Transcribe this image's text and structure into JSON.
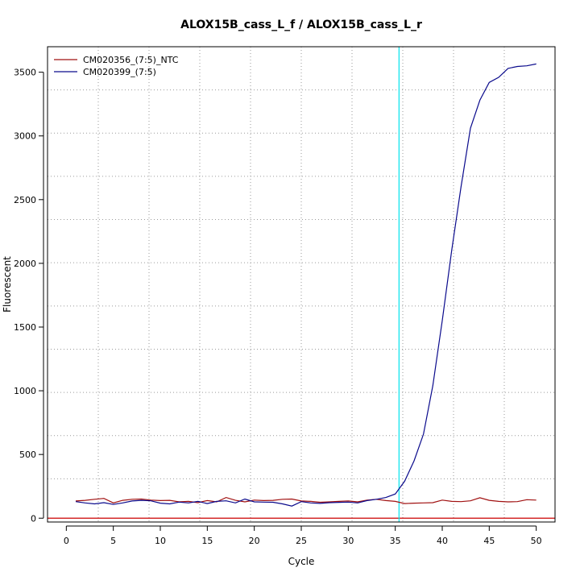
{
  "chart_data": {
    "type": "line",
    "title": "ALOX15B_cass_L_f / ALOX15B_cass_L_r",
    "xlabel": "Cycle",
    "ylabel": "Fluorescent",
    "xlim": [
      -2,
      52
    ],
    "ylim": [
      -30,
      3700
    ],
    "x_ticks": [
      0,
      5,
      10,
      15,
      20,
      25,
      30,
      35,
      40,
      45,
      50
    ],
    "y_ticks": [
      0,
      500,
      1000,
      1500,
      2000,
      2500,
      3000,
      3500
    ],
    "grid": true,
    "legend_position": "top-left",
    "threshold_x": 35.4,
    "baseline_y": 0,
    "colors": {
      "baseline": "#cc0000",
      "threshold": "#00e5ee",
      "grid": "#9a9a9a"
    },
    "series": [
      {
        "name": "CM020356_(7:5)_NTC",
        "color": "#a01010",
        "x": [
          1,
          2,
          3,
          4,
          5,
          6,
          7,
          8,
          9,
          10,
          11,
          12,
          13,
          14,
          15,
          16,
          17,
          18,
          19,
          20,
          21,
          22,
          23,
          24,
          25,
          26,
          27,
          28,
          29,
          30,
          31,
          32,
          33,
          34,
          35,
          36,
          37,
          38,
          39,
          40,
          41,
          42,
          43,
          44,
          45,
          46,
          47,
          48,
          49,
          50
        ],
        "values": [
          135,
          140,
          148,
          155,
          120,
          140,
          148,
          150,
          142,
          138,
          140,
          128,
          132,
          122,
          138,
          128,
          162,
          140,
          128,
          142,
          138,
          140,
          148,
          150,
          135,
          132,
          125,
          128,
          132,
          135,
          128,
          142,
          148,
          138,
          132,
          115,
          118,
          120,
          122,
          142,
          132,
          130,
          136,
          160,
          140,
          132,
          128,
          130,
          145,
          142
        ]
      },
      {
        "name": "CM020399_(7:5)",
        "color": "#0a0a8c",
        "x": [
          1,
          2,
          3,
          4,
          5,
          6,
          7,
          8,
          9,
          10,
          11,
          12,
          13,
          14,
          15,
          16,
          17,
          18,
          19,
          20,
          21,
          22,
          23,
          24,
          25,
          26,
          27,
          28,
          29,
          30,
          31,
          32,
          33,
          34,
          35,
          36,
          37,
          38,
          39,
          40,
          41,
          42,
          43,
          44,
          45,
          46,
          47,
          48,
          49,
          50
        ],
        "values": [
          130,
          120,
          112,
          122,
          108,
          120,
          135,
          140,
          136,
          118,
          112,
          126,
          120,
          132,
          115,
          132,
          136,
          120,
          150,
          128,
          126,
          125,
          112,
          95,
          130,
          120,
          116,
          122,
          124,
          126,
          120,
          138,
          148,
          162,
          190,
          290,
          450,
          660,
          1040,
          1550,
          2100,
          2600,
          3060,
          3280,
          3420,
          3460,
          3530,
          3545,
          3550,
          3565
        ]
      }
    ]
  }
}
